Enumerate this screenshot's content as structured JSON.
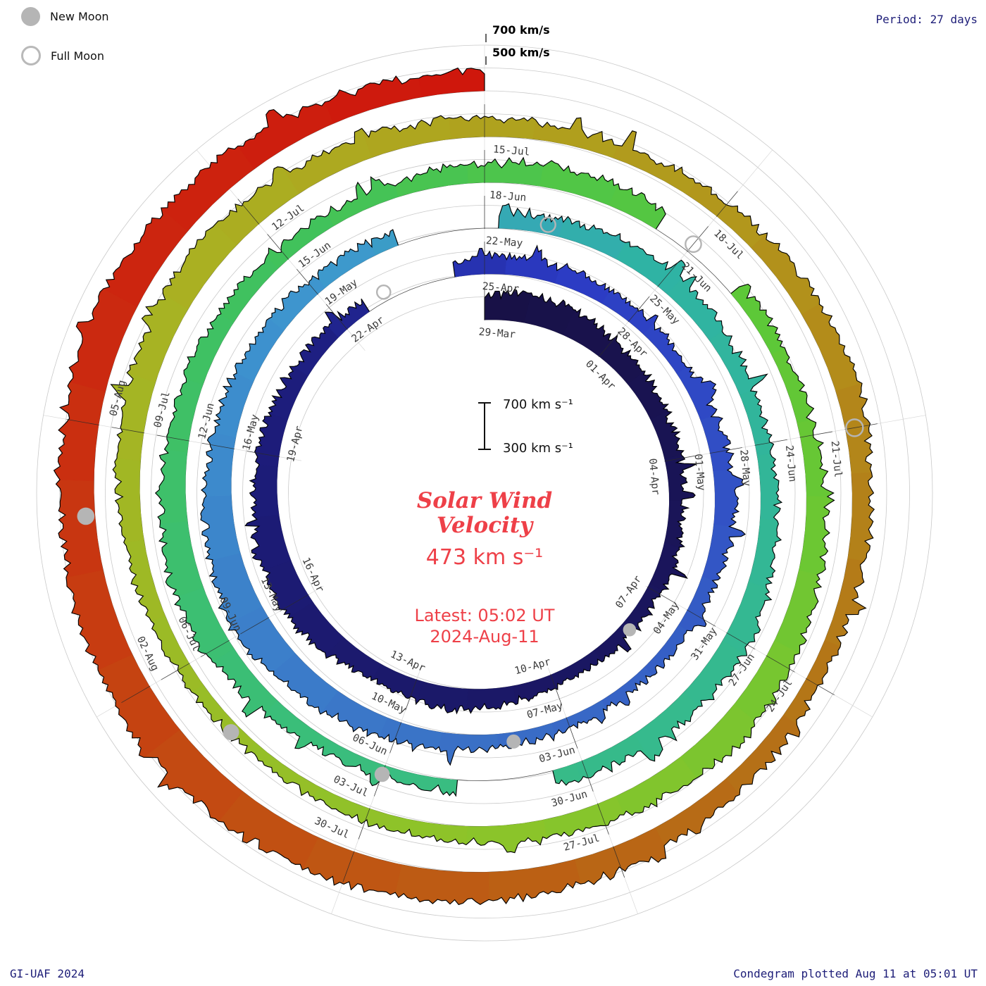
{
  "legend": {
    "new_moon": "New Moon",
    "full_moon": "Full Moon"
  },
  "period_label": "Period: 27 days",
  "ring_labels": {
    "l700": "700 km/s",
    "l500": "500 km/s"
  },
  "scale_bar": {
    "top": "700 km s⁻¹",
    "bottom": "300 km s⁻¹"
  },
  "center": {
    "title1": "Solar Wind",
    "title2": "Velocity",
    "value": "473 km s⁻¹",
    "latest1": "Latest: 05:02 UT",
    "latest2": "2024-Aug-11",
    "color": "#ee4048"
  },
  "footer": {
    "left": "GI-UAF 2024",
    "right": "Condegram plotted Aug 11 at 05:01 UT"
  },
  "chart_data": {
    "type": "spiral",
    "name": "condegram",
    "quantity": "Solar wind velocity (km/s)",
    "period_days": 27,
    "start_date": "2024-03-29",
    "end_date": "2024-08-11",
    "direction": "clockwise, one revolution per 27-day period, radius grows outward with time",
    "scale": {
      "baseline_kms": 300,
      "gridline_1_kms": 500,
      "gridline_2_kms": 700
    },
    "latest": {
      "value_kms": 473,
      "time": "05:02 UT",
      "date": "2024-Aug-11"
    },
    "date_labels": [
      {
        "d": 0,
        "t": "29-Mar"
      },
      {
        "d": 3,
        "t": "01-Apr"
      },
      {
        "d": 6,
        "t": "04-Apr"
      },
      {
        "d": 9,
        "t": "07-Apr"
      },
      {
        "d": 12,
        "t": "10-Apr"
      },
      {
        "d": 15,
        "t": "13-Apr"
      },
      {
        "d": 18,
        "t": "16-Apr"
      },
      {
        "d": 21,
        "t": "19-Apr"
      },
      {
        "d": 24,
        "t": "22-Apr"
      },
      {
        "d": 27,
        "t": "25-Apr"
      },
      {
        "d": 30,
        "t": "28-Apr"
      },
      {
        "d": 33,
        "t": "01-May"
      },
      {
        "d": 36,
        "t": "04-May"
      },
      {
        "d": 39,
        "t": "07-May"
      },
      {
        "d": 42,
        "t": "10-May"
      },
      {
        "d": 45,
        "t": "13-May"
      },
      {
        "d": 48,
        "t": "16-May"
      },
      {
        "d": 51,
        "t": "19-May"
      },
      {
        "d": 54,
        "t": "22-May"
      },
      {
        "d": 57,
        "t": "25-May"
      },
      {
        "d": 60,
        "t": "28-May"
      },
      {
        "d": 63,
        "t": "31-May"
      },
      {
        "d": 66,
        "t": "03-Jun"
      },
      {
        "d": 69,
        "t": "06-Jun"
      },
      {
        "d": 72,
        "t": "09-Jun"
      },
      {
        "d": 75,
        "t": "12-Jun"
      },
      {
        "d": 78,
        "t": "15-Jun"
      },
      {
        "d": 81,
        "t": "18-Jun"
      },
      {
        "d": 84,
        "t": "21-Jun"
      },
      {
        "d": 87,
        "t": "24-Jun"
      },
      {
        "d": 90,
        "t": "27-Jun"
      },
      {
        "d": 93,
        "t": "30-Jun"
      },
      {
        "d": 96,
        "t": "03-Jul"
      },
      {
        "d": 99,
        "t": "06-Jul"
      },
      {
        "d": 102,
        "t": "09-Jul"
      },
      {
        "d": 105,
        "t": "12-Jul"
      },
      {
        "d": 108,
        "t": "15-Jul"
      },
      {
        "d": 111,
        "t": "18-Jul"
      },
      {
        "d": 114,
        "t": "21-Jul"
      },
      {
        "d": 117,
        "t": "24-Jul"
      },
      {
        "d": 120,
        "t": "27-Jul"
      },
      {
        "d": 123,
        "t": "30-Jul"
      },
      {
        "d": 126,
        "t": "02-Aug"
      },
      {
        "d": 129,
        "t": "05-Aug"
      }
    ],
    "daily_velocity_kms": [
      520,
      555,
      540,
      505,
      475,
      455,
      435,
      420,
      440,
      430,
      410,
      400,
      420,
      450,
      480,
      470,
      445,
      520,
      560,
      540,
      505,
      480,
      460,
      440,
      420,
      415,
      430,
      450,
      470,
      445,
      420,
      410,
      430,
      460,
      480,
      450,
      420,
      400,
      390,
      405,
      420,
      440,
      470,
      500,
      560,
      620,
      580,
      540,
      505,
      480,
      460,
      440,
      425,
      415,
      430,
      450,
      470,
      490,
      460,
      440,
      430,
      450,
      480,
      520,
      490,
      460,
      440,
      420,
      410,
      400,
      420,
      460,
      520,
      560,
      530,
      500,
      470,
      450,
      430,
      420,
      440,
      470,
      500,
      480,
      450,
      430,
      420,
      440,
      470,
      500,
      530,
      560,
      520,
      480,
      450,
      430,
      420,
      410,
      400,
      420,
      450,
      480,
      510,
      540,
      560,
      530,
      500,
      480,
      460,
      440,
      430,
      450,
      480,
      510,
      490,
      460,
      440,
      430,
      450,
      480,
      510,
      540,
      565,
      585,
      605,
      625,
      640,
      620,
      590,
      610,
      630,
      600,
      560,
      520,
      490,
      473
    ],
    "gaps_days": [
      [
        24.6,
        26.4
      ],
      [
        52.6,
        54.2
      ],
      [
        66.5,
        67.9
      ],
      [
        83.5,
        84.8
      ]
    ],
    "new_moon_days": [
      10,
      40,
      69,
      98,
      128
    ],
    "full_moon_days": [
      25,
      55,
      84,
      114
    ],
    "moon_color": "#b5b5b5",
    "colormap": [
      {
        "t": 0.0,
        "c": "#181146"
      },
      {
        "t": 0.17,
        "c": "#1d1d7e"
      },
      {
        "t": 0.21,
        "c": "#2b3ac4"
      },
      {
        "t": 0.3,
        "c": "#3a6fc6"
      },
      {
        "t": 0.38,
        "c": "#3e97cf"
      },
      {
        "t": 0.42,
        "c": "#2fb3a4"
      },
      {
        "t": 0.5,
        "c": "#38bc84"
      },
      {
        "t": 0.58,
        "c": "#41c25b"
      },
      {
        "t": 0.63,
        "c": "#5cc838"
      },
      {
        "t": 0.7,
        "c": "#8cc42a"
      },
      {
        "t": 0.77,
        "c": "#aab122"
      },
      {
        "t": 0.82,
        "c": "#b2991c"
      },
      {
        "t": 0.87,
        "c": "#b47317"
      },
      {
        "t": 0.92,
        "c": "#c24f12"
      },
      {
        "t": 0.96,
        "c": "#cb2a10"
      },
      {
        "t": 1.0,
        "c": "#cf160c"
      }
    ]
  }
}
